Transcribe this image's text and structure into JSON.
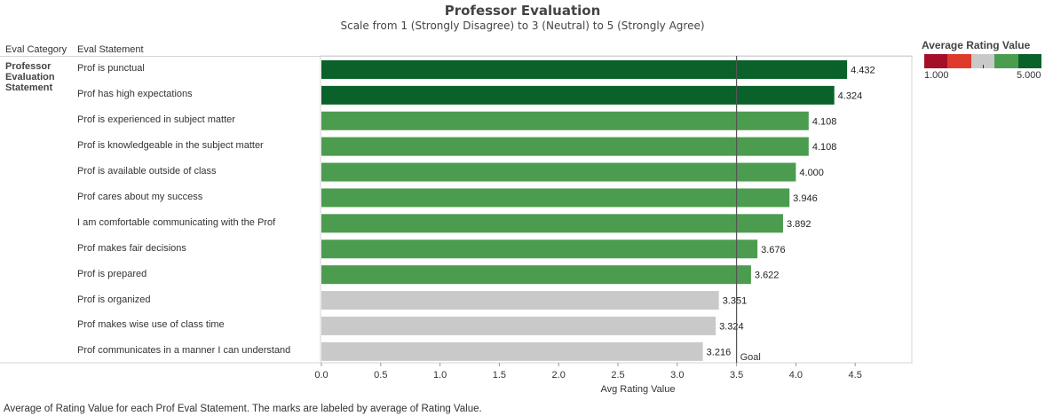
{
  "title": "Professor Evaluation",
  "subtitle": "Scale from 1 (Strongly Disagree) to 3 (Neutral) to 5 (Strongly Agree)",
  "headers": {
    "category": "Eval Category",
    "statement": "Eval Statement"
  },
  "category_label": "Professor Evaluation Statement",
  "legend": {
    "title": "Average Rating Value",
    "min_label": "1.000",
    "max_label": "5.000",
    "colors": [
      "#a50f27",
      "#de3b2c",
      "#c9c9c9",
      "#4c9c4f",
      "#0a6129"
    ]
  },
  "caption": "Average of Rating Value for each Prof Eval Statement.  The marks are labeled by average of Rating Value.",
  "chart_data": {
    "type": "bar",
    "orientation": "horizontal",
    "categories": [
      "Prof is punctual",
      "Prof has high expectations",
      "Prof is experienced in subject matter",
      "Prof is knowledgeable in the subject matter",
      "Prof is available outside of class",
      "Prof cares about my success",
      "I am comfortable communicating with the Prof",
      "Prof makes fair decisions",
      "Prof is prepared",
      "Prof is organized",
      "Prof makes wise use of class time",
      "Prof communicates in a manner I can understand"
    ],
    "values": [
      4.432,
      4.324,
      4.108,
      4.108,
      4.0,
      3.946,
      3.892,
      3.676,
      3.622,
      3.351,
      3.324,
      3.216
    ],
    "value_labels": [
      "4.432",
      "4.324",
      "4.108",
      "4.108",
      "4.000",
      "3.946",
      "3.892",
      "3.676",
      "3.622",
      "3.351",
      "3.324",
      "3.216"
    ],
    "bar_colors": [
      "#0a6129",
      "#0a6129",
      "#4c9c4f",
      "#4c9c4f",
      "#4c9c4f",
      "#4c9c4f",
      "#4c9c4f",
      "#4c9c4f",
      "#4c9c4f",
      "#c9c9c9",
      "#c9c9c9",
      "#c9c9c9"
    ],
    "xlabel": "Avg Rating Value",
    "xlim": [
      0,
      4.9
    ],
    "xticks": [
      "0.0",
      "0.5",
      "1.0",
      "1.5",
      "2.0",
      "2.5",
      "3.0",
      "3.5",
      "4.0",
      "4.5"
    ],
    "grid": false,
    "reference_line": {
      "value": 3.5,
      "label": "Goal"
    }
  }
}
